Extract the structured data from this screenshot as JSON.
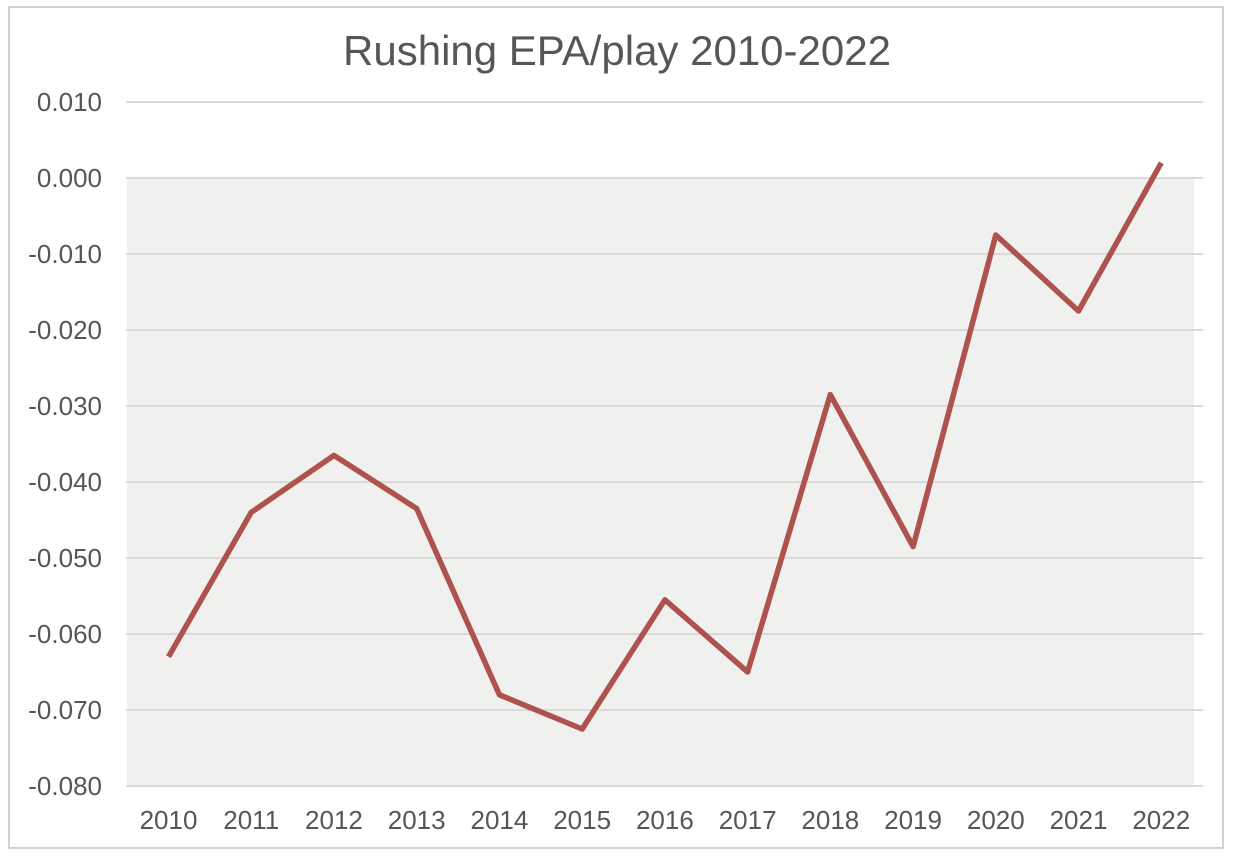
{
  "title": "Rushing EPA/play 2010-2022",
  "chart_data": {
    "type": "line",
    "title": "Rushing EPA/play 2010-2022",
    "categories": [
      "2010",
      "2011",
      "2012",
      "2013",
      "2014",
      "2015",
      "2016",
      "2017",
      "2018",
      "2019",
      "2020",
      "2021",
      "2022"
    ],
    "series": [
      {
        "name": "Rushing EPA/play",
        "values": [
          -0.063,
          -0.044,
          -0.0365,
          -0.0435,
          -0.068,
          -0.0725,
          -0.0555,
          -0.065,
          -0.0285,
          -0.0485,
          -0.0075,
          -0.0175,
          0.002
        ]
      }
    ],
    "xlabel": "",
    "ylabel": "",
    "ylim": [
      -0.08,
      0.01
    ],
    "ytick_step": 0.01,
    "yticks": [
      0.01,
      0,
      -0.01,
      -0.02,
      -0.03,
      -0.04,
      -0.05,
      -0.06,
      -0.07,
      -0.08
    ],
    "ytick_labels": [
      "0.010",
      "0.000",
      "-0.010",
      "-0.020",
      "-0.030",
      "-0.040",
      "-0.050",
      "-0.060",
      "-0.070",
      "-0.080"
    ],
    "grid": true,
    "legend": "none",
    "colors": {
      "line": "#ae524d",
      "below_zero_band": "#f0f0ef",
      "gridline": "#d9d9d9",
      "axis_text": "#565656",
      "title_text": "#565656",
      "card_border": "#d2d2d2",
      "background": "#ffffff"
    }
  }
}
